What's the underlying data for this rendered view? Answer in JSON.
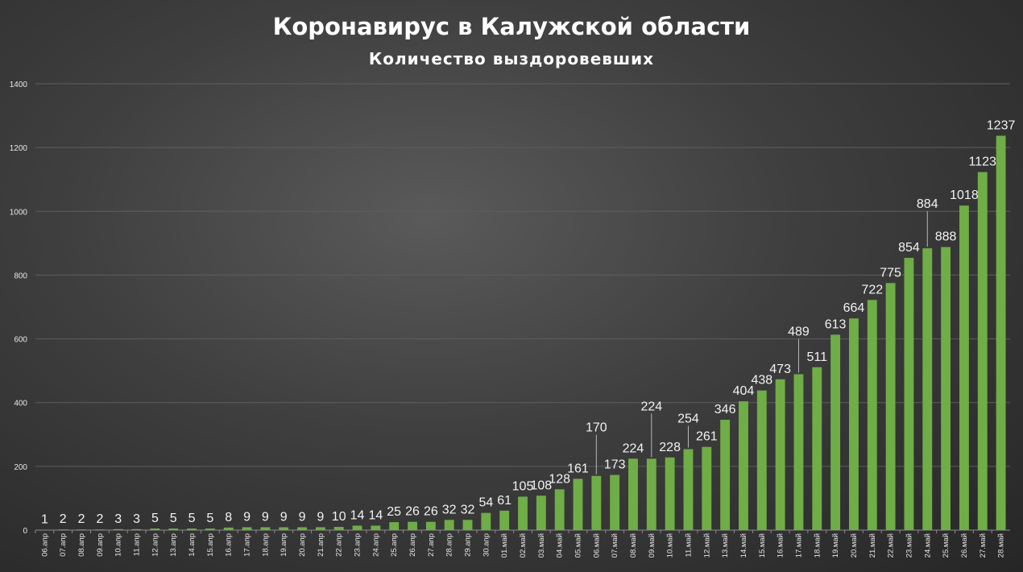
{
  "chart_data": {
    "type": "bar",
    "title": "Коронавирус в Калужской области",
    "subtitle": "Количество выздоровевших",
    "xlabel": "",
    "ylabel": "",
    "ylim": [
      0,
      1400
    ],
    "yticks": [
      0,
      200,
      400,
      600,
      800,
      1000,
      1200,
      1400
    ],
    "grid": true,
    "legend": "none",
    "bar_color": "#6fad46",
    "categories": [
      "06.апр",
      "07.апр",
      "08.апр",
      "09.апр",
      "10.апр",
      "11.апр",
      "12.апр",
      "13.апр",
      "14.апр",
      "15.апр",
      "16.апр",
      "17.апр",
      "18.апр",
      "19.апр",
      "20.апр",
      "21.апр",
      "22.апр",
      "23.апр",
      "24.апр",
      "25.апр",
      "26.апр",
      "27.апр",
      "28.апр",
      "29.апр",
      "30.апр",
      "01.май",
      "02.май",
      "03.май",
      "04.май",
      "05.май",
      "06.май",
      "07.май",
      "08.май",
      "09.май",
      "10.май",
      "11.май",
      "12.май",
      "13.май",
      "14.май",
      "15.май",
      "16.май",
      "17.май",
      "18.май",
      "19.май",
      "20.май",
      "21.май",
      "22.май",
      "23.май",
      "24.май",
      "25.май",
      "26.май",
      "27.май",
      "28.май"
    ],
    "values": [
      1,
      2,
      2,
      2,
      3,
      3,
      5,
      5,
      5,
      5,
      8,
      9,
      9,
      9,
      9,
      9,
      10,
      14,
      14,
      25,
      26,
      26,
      32,
      32,
      54,
      61,
      105,
      108,
      128,
      161,
      170,
      173,
      224,
      224,
      228,
      254,
      261,
      346,
      404,
      438,
      473,
      489,
      511,
      613,
      664,
      722,
      775,
      854,
      884,
      888,
      1018,
      1123,
      1237
    ]
  }
}
